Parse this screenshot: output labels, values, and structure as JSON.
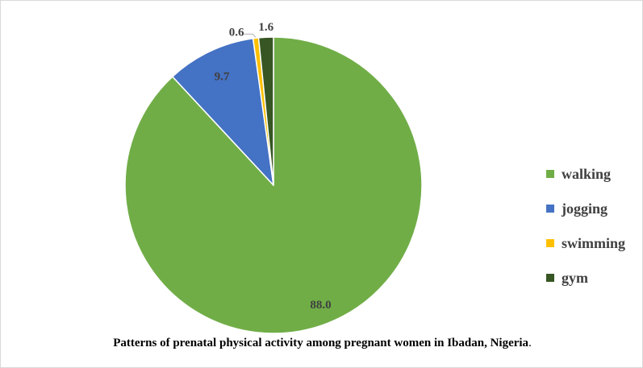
{
  "chart_data": {
    "type": "pie",
    "title": "",
    "categories": [
      "walking",
      "jogging",
      "swimming",
      "gym"
    ],
    "values": [
      88.0,
      9.7,
      0.6,
      1.6
    ],
    "value_labels": [
      "88.0",
      "9.7",
      "0.6",
      "1.6"
    ],
    "colors": [
      "#70ad47",
      "#4472c4",
      "#ffc000",
      "#375623"
    ],
    "start_angle_deg": 0,
    "direction": "clockwise",
    "legend_position": "right"
  },
  "caption": {
    "text": "Patterns of prenatal physical activity among pregnant women in Ibadan, Nigeria",
    "period": "."
  }
}
